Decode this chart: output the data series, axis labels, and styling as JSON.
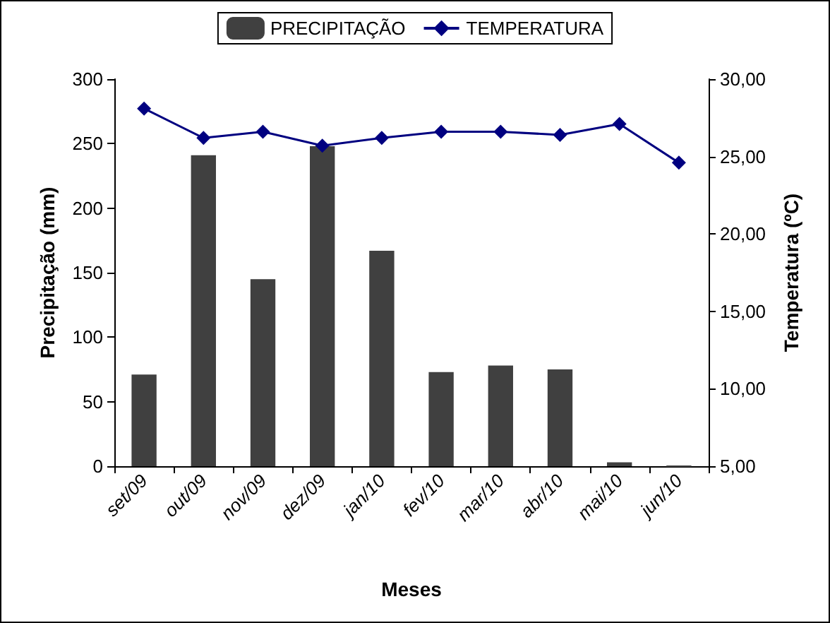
{
  "chart_data": {
    "type": "bar",
    "xlabel": "Meses",
    "ylabel": "Precipitação (mm)",
    "y2label": "Temperatura (ºC)",
    "categories": [
      "set/09",
      "out/09",
      "nov/09",
      "dez/09",
      "jan/10",
      "fev/10",
      "mar/10",
      "abr/10",
      "mai/10",
      "jun/10"
    ],
    "series": [
      {
        "name": "PRECIPITAÇÃO",
        "color": "#404040",
        "values": [
          71,
          241,
          145,
          248,
          167,
          73,
          78,
          75,
          3,
          0
        ]
      },
      {
        "name": "TEMPERATURA",
        "type": "line",
        "axis": "y2",
        "color": "#000080",
        "marker": "diamond",
        "values": [
          28.1,
          26.2,
          26.6,
          25.7,
          26.2,
          26.6,
          26.6,
          26.4,
          27.1,
          24.6
        ]
      }
    ],
    "ylim": [
      0,
      300
    ],
    "yticks": [
      0,
      50,
      100,
      150,
      200,
      250,
      300
    ],
    "y2lim": [
      5,
      30
    ],
    "y2ticks": [
      {
        "value": 5,
        "label": "5,00"
      },
      {
        "value": 10,
        "label": "10,00"
      },
      {
        "value": 15,
        "label": "15,00"
      },
      {
        "value": 20,
        "label": "20,00"
      },
      {
        "value": 25,
        "label": "25,00"
      },
      {
        "value": 30,
        "label": "30,00"
      }
    ],
    "grid": false,
    "legend": "top"
  }
}
